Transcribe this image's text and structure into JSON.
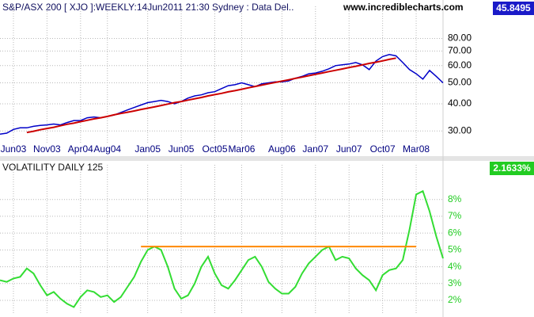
{
  "chart_data": [
    {
      "type": "line",
      "title": "S&P/ASX 200 [ XJO ]:WEEKLY:14Jun2011 21:30 Sydney : Data Del..",
      "source": "www.incrediblecharts.com",
      "last_value": 45.8495,
      "log_scale": true,
      "grid": true,
      "ylim": [
        26.5,
        100
      ],
      "yticks": [
        {
          "value": 30,
          "label": "30.00"
        },
        {
          "value": 40,
          "label": "40.00"
        },
        {
          "value": 50,
          "label": "50.00"
        },
        {
          "value": 60,
          "label": "60.00"
        },
        {
          "value": 70,
          "label": "70.00"
        },
        {
          "value": 80,
          "label": "80.00"
        }
      ],
      "categories": [
        null,
        null,
        "Jun03",
        null,
        null,
        null,
        null,
        "Nov03",
        null,
        null,
        null,
        null,
        "Apr04",
        null,
        null,
        null,
        "Aug04",
        null,
        null,
        null,
        null,
        null,
        "Jan05",
        null,
        null,
        null,
        null,
        "Jun05",
        null,
        null,
        null,
        null,
        "Oct05",
        null,
        null,
        null,
        "Mar06",
        null,
        null,
        null,
        null,
        null,
        "Aug06",
        null,
        null,
        null,
        null,
        "Jan07",
        null,
        null,
        null,
        null,
        "Jun07",
        null,
        null,
        null,
        null,
        "Oct07",
        null,
        null,
        null,
        null,
        "Mar08",
        null,
        null,
        null,
        null
      ],
      "series": [
        {
          "color": "#0000c8",
          "values": [
            29.0,
            29.3,
            30.5,
            31.0,
            31.0,
            31.5,
            31.8,
            32.0,
            32.3,
            32.0,
            32.8,
            33.5,
            33.5,
            34.5,
            34.8,
            34.5,
            35.0,
            35.5,
            36.5,
            37.5,
            38.5,
            39.5,
            40.5,
            41.0,
            41.5,
            41.0,
            40.0,
            41.0,
            42.5,
            43.5,
            44.0,
            45.0,
            45.5,
            47.0,
            48.5,
            49.0,
            50.0,
            49.0,
            48.0,
            49.5,
            50.0,
            50.5,
            50.5,
            51.0,
            52.5,
            53.5,
            55.0,
            55.5,
            56.5,
            58.0,
            60.0,
            60.5,
            61.0,
            62.0,
            60.5,
            57.5,
            63.0,
            66.0,
            67.5,
            66.5,
            62.0,
            57.5,
            55.0,
            52.0,
            57.0,
            53.5,
            50.0
          ]
        },
        {
          "color": "#cc0000",
          "values": [
            null,
            null,
            null,
            null,
            29.5,
            29.9,
            30.4,
            30.8,
            31.2,
            31.7,
            32.2,
            32.6,
            33.1,
            33.6,
            34.1,
            34.5,
            35.0,
            35.6,
            36.1,
            36.6,
            37.1,
            37.7,
            38.2,
            38.7,
            39.3,
            39.9,
            40.5,
            41.0,
            41.6,
            42.2,
            42.8,
            43.5,
            44.1,
            44.7,
            45.4,
            46.0,
            46.7,
            47.4,
            48.1,
            48.8,
            49.5,
            50.2,
            50.9,
            51.6,
            52.4,
            53.1,
            53.9,
            54.7,
            55.5,
            56.3,
            57.1,
            57.9,
            58.8,
            59.6,
            60.5,
            61.4,
            62.2,
            63.1,
            64.1,
            65.0,
            null,
            null,
            null,
            null,
            null,
            null,
            null
          ]
        }
      ]
    },
    {
      "type": "line",
      "title": "VOLATILITY DAILY 125",
      "last_value": {
        "value": 2.1633,
        "label": "2.1633%"
      },
      "grid": true,
      "ylim": [
        1.2,
        9.4
      ],
      "yticks": [
        {
          "value": 2,
          "label": "2%"
        },
        {
          "value": 3,
          "label": "3%"
        },
        {
          "value": 4,
          "label": "4%"
        },
        {
          "value": 5,
          "label": "5%"
        },
        {
          "value": 6,
          "label": "6%"
        },
        {
          "value": 7,
          "label": "7%"
        },
        {
          "value": 8,
          "label": "8%"
        }
      ],
      "categories": [
        null,
        null,
        null,
        null,
        null,
        null,
        null,
        null,
        null,
        null,
        null,
        null,
        null,
        null,
        null,
        null,
        null,
        null,
        null,
        null,
        null,
        null,
        null,
        null,
        null,
        null,
        null,
        null,
        null,
        null,
        null,
        null,
        null,
        null,
        null,
        null,
        null,
        null,
        null,
        null,
        null,
        null,
        null,
        null,
        null,
        null,
        null,
        null,
        null,
        null,
        null,
        null,
        null,
        null,
        null,
        null,
        null,
        null,
        null,
        null,
        null,
        null,
        null,
        null,
        null,
        null,
        null
      ],
      "series": [
        {
          "color": "#33dd33",
          "values": [
            3.2,
            3.1,
            3.3,
            3.4,
            3.9,
            3.6,
            2.9,
            2.3,
            2.5,
            2.1,
            1.8,
            1.6,
            2.2,
            2.6,
            2.5,
            2.2,
            2.3,
            1.9,
            2.2,
            2.8,
            3.4,
            4.3,
            5.0,
            5.2,
            5.0,
            4.0,
            2.7,
            2.1,
            2.3,
            3.0,
            4.0,
            4.6,
            3.6,
            2.9,
            2.7,
            3.2,
            3.8,
            4.4,
            4.6,
            4.0,
            3.1,
            2.7,
            2.4,
            2.4,
            2.8,
            3.6,
            4.2,
            4.6,
            5.0,
            5.2,
            4.4,
            4.6,
            4.5,
            3.9,
            3.5,
            3.2,
            2.6,
            3.5,
            3.8,
            3.9,
            4.4,
            6.2,
            8.3,
            8.5,
            7.3,
            5.8,
            4.5
          ]
        },
        {
          "color": "#ff8800",
          "values": [
            null,
            null,
            null,
            null,
            null,
            null,
            null,
            null,
            null,
            null,
            null,
            null,
            null,
            null,
            null,
            null,
            null,
            null,
            null,
            null,
            null,
            5.2,
            5.2,
            5.2,
            5.2,
            5.2,
            5.2,
            5.2,
            5.2,
            5.2,
            5.2,
            5.2,
            5.2,
            5.2,
            5.2,
            5.2,
            5.2,
            5.2,
            5.2,
            5.2,
            5.2,
            5.2,
            5.2,
            5.2,
            5.2,
            5.2,
            5.2,
            5.2,
            5.2,
            5.2,
            5.2,
            5.2,
            5.2,
            5.2,
            5.2,
            5.2,
            5.2,
            5.2,
            5.2,
            5.2,
            5.2,
            5.2,
            5.2,
            null,
            null,
            null,
            null
          ]
        }
      ]
    }
  ]
}
